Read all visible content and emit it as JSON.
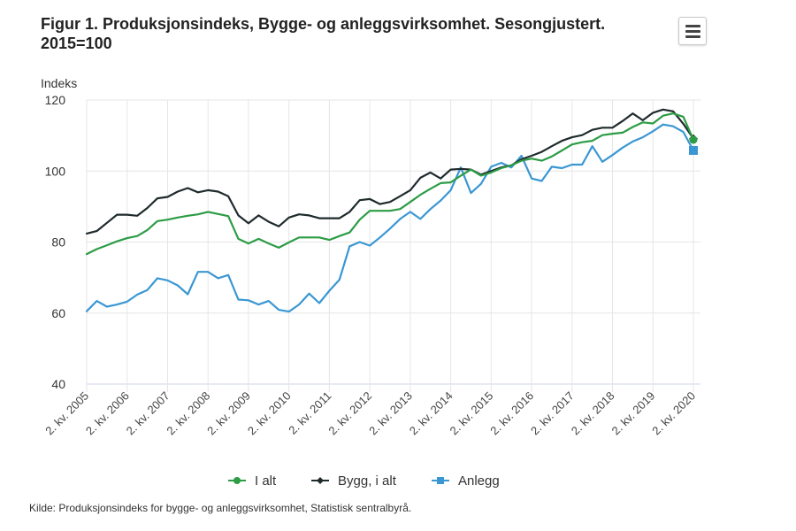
{
  "title": "Figur 1. Produksjonsindeks, Bygge- og anleggsvirksomhet. Sesongjustert. 2015=100",
  "title_lines": [
    "Figur 1. Produksjonsindeks, Bygge- og anleggsvirksomhet. Sesongjustert.",
    "2015=100"
  ],
  "menu_button": {
    "icon": "hamburger-menu-icon",
    "label": "Chart context menu"
  },
  "source": "Kilde: Produksjonsindeks for bygge- og anleggsvirksomhet, Statistisk sentralbyrå.",
  "chart_data": {
    "type": "line",
    "title": "Figur 1. Produksjonsindeks, Bygge- og anleggsvirksomhet. Sesongjustert. 2015=100",
    "xlabel": "",
    "ylabel": "Indeks",
    "ylim": [
      40,
      120
    ],
    "yticks": [
      40,
      60,
      80,
      100,
      120
    ],
    "grid": true,
    "legend_position": "bottom-center",
    "x_start": "2. kv. 2005",
    "x_end": "2. kv. 2020",
    "frequency": "quarterly",
    "xtick_labels": [
      "2. kv. 2005",
      "2. kv. 2006",
      "2. kv. 2007",
      "2. kv. 2008",
      "2. kv. 2009",
      "2. kv. 2010",
      "2. kv. 2011",
      "2. kv. 2012",
      "2. kv. 2013",
      "2. kv. 2014",
      "2. kv. 2015",
      "2. kv. 2016",
      "2. kv. 2017",
      "2. kv. 2018",
      "2. kv. 2019",
      "2. kv. 2020"
    ],
    "series": [
      {
        "name": "I alt",
        "color": "#2c9c45",
        "marker": "circle",
        "values": [
          76.6,
          78.0,
          79.1,
          80.2,
          81.1,
          81.7,
          83.4,
          85.9,
          86.3,
          86.9,
          87.4,
          87.8,
          88.5,
          87.9,
          87.3,
          80.9,
          79.6,
          80.9,
          79.6,
          78.4,
          79.9,
          81.3,
          81.3,
          81.3,
          80.6,
          81.7,
          82.7,
          86.3,
          88.8,
          88.8,
          88.8,
          89.3,
          91.3,
          93.3,
          95.0,
          96.6,
          96.8,
          98.7,
          100.4,
          98.7,
          99.6,
          100.8,
          101.6,
          102.9,
          103.5,
          102.9,
          104.1,
          105.8,
          107.5,
          108.1,
          108.5,
          110.1,
          110.5,
          110.8,
          112.4,
          113.7,
          113.4,
          115.6,
          116.2,
          115.3,
          108.8
        ]
      },
      {
        "name": "Bygg, i alt",
        "color": "#1f2a2c",
        "marker": "diamond",
        "values": [
          82.4,
          83.1,
          85.4,
          87.7,
          87.7,
          87.4,
          89.6,
          92.3,
          92.7,
          94.2,
          95.2,
          94.0,
          94.6,
          94.2,
          92.9,
          87.5,
          85.3,
          87.5,
          85.7,
          84.4,
          86.9,
          87.8,
          87.5,
          86.7,
          86.7,
          86.7,
          88.5,
          91.8,
          92.1,
          90.7,
          91.3,
          92.9,
          94.6,
          98.1,
          99.6,
          97.9,
          100.4,
          100.6,
          100.4,
          99.0,
          100.0,
          101.0,
          101.6,
          103.3,
          104.3,
          105.4,
          107.0,
          108.5,
          109.5,
          110.1,
          111.6,
          112.2,
          112.2,
          114.1,
          116.2,
          114.3,
          116.4,
          117.3,
          116.8,
          113.3,
          109.1
        ]
      },
      {
        "name": "Anlegg",
        "color": "#3a97d3",
        "marker": "square",
        "values": [
          60.5,
          63.4,
          61.8,
          62.4,
          63.2,
          65.2,
          66.5,
          69.8,
          69.2,
          67.8,
          65.3,
          71.6,
          71.6,
          69.8,
          70.7,
          63.8,
          63.6,
          62.4,
          63.4,
          60.9,
          60.4,
          62.4,
          65.5,
          62.8,
          66.3,
          69.4,
          78.8,
          80.0,
          79.0,
          81.3,
          83.8,
          86.5,
          88.5,
          86.5,
          89.3,
          91.7,
          94.6,
          101.0,
          93.8,
          96.4,
          101.2,
          102.3,
          101.0,
          104.3,
          97.9,
          97.2,
          101.2,
          100.8,
          101.8,
          101.8,
          107.0,
          102.6,
          104.5,
          106.6,
          108.3,
          109.5,
          111.2,
          113.1,
          112.6,
          111.0,
          105.8
        ]
      }
    ]
  }
}
